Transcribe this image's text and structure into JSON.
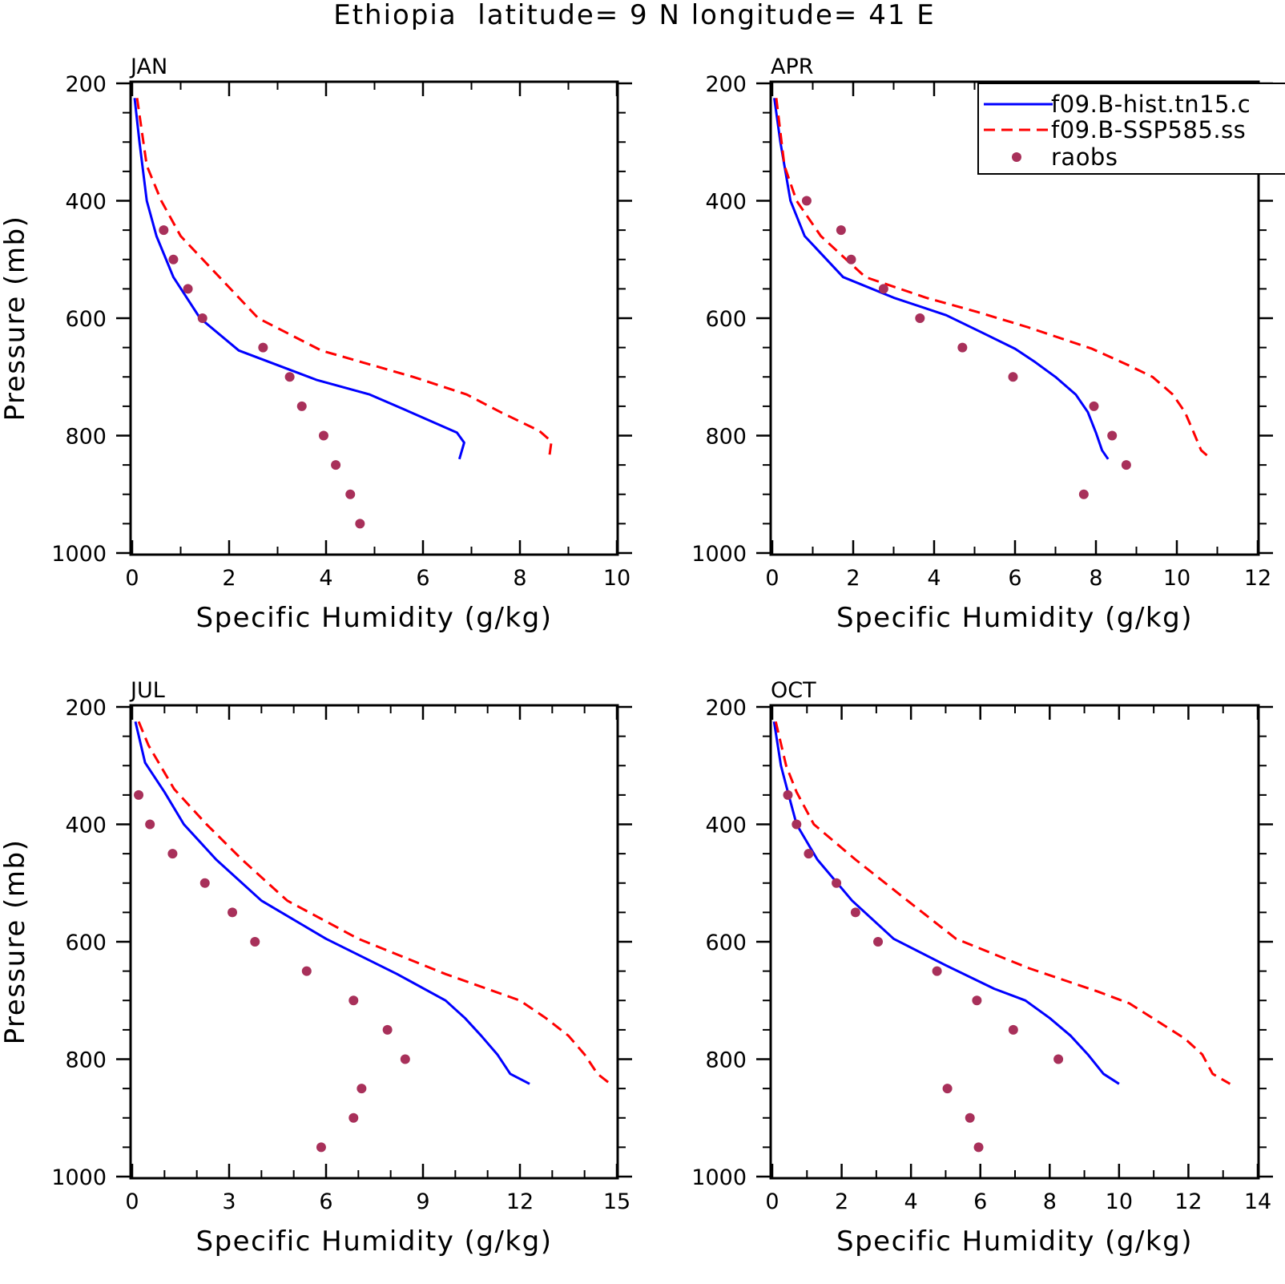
{
  "figure_title": "Ethiopia  latitude= 9 N longitude= 41 E",
  "colors": {
    "hist": "#0000ff",
    "ssp": "#ff0000",
    "raobs": "#a8305a",
    "axis": "#000000"
  },
  "legend": {
    "entries": [
      {
        "label": "f09.B-hist.tn15.c",
        "style": "solid-line",
        "color": "#0000ff"
      },
      {
        "label": "f09.B-SSP585.ss",
        "style": "dashed-line",
        "color": "#ff0000"
      },
      {
        "label": "raobs",
        "style": "marker",
        "color": "#a8305a"
      }
    ],
    "placement": "top-right of APR panel"
  },
  "chart_data": [
    {
      "type": "line",
      "panel": "JAN",
      "xlabel": "Specific Humidity (g/kg)",
      "ylabel": "Pressure (mb)",
      "xlim": [
        0,
        10
      ],
      "ylim": [
        1000,
        200
      ],
      "y_inverted": true,
      "xticks": [
        0,
        2,
        4,
        6,
        8,
        10
      ],
      "yticks": [
        200,
        400,
        600,
        800,
        1000
      ],
      "grid": false,
      "series": [
        {
          "name": "f09.B-hist.tn15.c",
          "style": "solid",
          "points": [
            [
              0.05,
              225
            ],
            [
              0.15,
              300
            ],
            [
              0.3,
              400
            ],
            [
              0.5,
              460
            ],
            [
              0.85,
              530
            ],
            [
              1.4,
              600
            ],
            [
              2.2,
              655
            ],
            [
              3.8,
              705
            ],
            [
              4.9,
              730
            ],
            [
              5.6,
              755
            ],
            [
              6.7,
              795
            ],
            [
              6.85,
              812
            ],
            [
              6.75,
              840
            ]
          ]
        },
        {
          "name": "f09.B-SSP585.ss",
          "style": "dashed",
          "points": [
            [
              0.1,
              225
            ],
            [
              0.3,
              340
            ],
            [
              0.6,
              400
            ],
            [
              1.0,
              460
            ],
            [
              1.8,
              530
            ],
            [
              2.6,
              600
            ],
            [
              3.9,
              655
            ],
            [
              5.8,
              700
            ],
            [
              6.9,
              730
            ],
            [
              7.6,
              760
            ],
            [
              8.4,
              792
            ],
            [
              8.65,
              810
            ],
            [
              8.6,
              840
            ]
          ]
        },
        {
          "name": "raobs",
          "style": "marker",
          "points": [
            [
              0.65,
              450
            ],
            [
              0.85,
              500
            ],
            [
              1.15,
              550
            ],
            [
              1.45,
              600
            ],
            [
              2.7,
              650
            ],
            [
              3.25,
              700
            ],
            [
              3.5,
              750
            ],
            [
              3.95,
              800
            ],
            [
              4.2,
              850
            ],
            [
              4.5,
              900
            ],
            [
              4.7,
              950
            ]
          ]
        }
      ]
    },
    {
      "type": "line",
      "panel": "APR",
      "xlabel": "Specific Humidity (g/kg)",
      "ylabel": "",
      "xlim": [
        0,
        12
      ],
      "ylim": [
        1000,
        200
      ],
      "y_inverted": true,
      "xticks": [
        0,
        2,
        4,
        6,
        8,
        10,
        12
      ],
      "yticks": [
        200,
        400,
        600,
        800,
        1000
      ],
      "grid": false,
      "series": [
        {
          "name": "f09.B-hist.tn15.c",
          "style": "solid",
          "points": [
            [
              0.05,
              225
            ],
            [
              0.2,
              300
            ],
            [
              0.45,
              400
            ],
            [
              0.8,
              460
            ],
            [
              1.75,
              530
            ],
            [
              3.0,
              565
            ],
            [
              4.3,
              595
            ],
            [
              5.2,
              625
            ],
            [
              6.0,
              652
            ],
            [
              6.5,
              675
            ],
            [
              7.0,
              700
            ],
            [
              7.5,
              730
            ],
            [
              7.8,
              760
            ],
            [
              8.0,
              795
            ],
            [
              8.15,
              825
            ],
            [
              8.3,
              840
            ]
          ]
        },
        {
          "name": "f09.B-SSP585.ss",
          "style": "dashed",
          "points": [
            [
              0.1,
              225
            ],
            [
              0.3,
              340
            ],
            [
              0.6,
              400
            ],
            [
              1.2,
              460
            ],
            [
              2.3,
              530
            ],
            [
              3.8,
              565
            ],
            [
              5.1,
              590
            ],
            [
              6.3,
              615
            ],
            [
              7.9,
              652
            ],
            [
              8.8,
              680
            ],
            [
              9.4,
              700
            ],
            [
              9.9,
              730
            ],
            [
              10.2,
              760
            ],
            [
              10.4,
              792
            ],
            [
              10.6,
              825
            ],
            [
              10.85,
              840
            ]
          ]
        },
        {
          "name": "raobs",
          "style": "marker",
          "points": [
            [
              0.85,
              400
            ],
            [
              1.7,
              450
            ],
            [
              1.95,
              500
            ],
            [
              2.75,
              550
            ],
            [
              3.65,
              600
            ],
            [
              4.7,
              650
            ],
            [
              5.95,
              700
            ],
            [
              7.95,
              750
            ],
            [
              8.4,
              800
            ],
            [
              8.75,
              850
            ],
            [
              7.7,
              900
            ]
          ]
        }
      ]
    },
    {
      "type": "line",
      "panel": "JUL",
      "xlabel": "Specific Humidity (g/kg)",
      "ylabel": "Pressure (mb)",
      "xlim": [
        0,
        15
      ],
      "ylim": [
        1000,
        200
      ],
      "y_inverted": true,
      "xticks": [
        0,
        3,
        6,
        9,
        12,
        15
      ],
      "yticks": [
        200,
        400,
        600,
        800,
        1000
      ],
      "grid": false,
      "series": [
        {
          "name": "f09.B-hist.tn15.c",
          "style": "solid",
          "points": [
            [
              0.1,
              225
            ],
            [
              0.4,
              295
            ],
            [
              1.0,
              345
            ],
            [
              1.6,
              400
            ],
            [
              2.6,
              460
            ],
            [
              4.0,
              530
            ],
            [
              6.0,
              595
            ],
            [
              8.2,
              655
            ],
            [
              9.7,
              700
            ],
            [
              10.3,
              730
            ],
            [
              10.8,
              760
            ],
            [
              11.3,
              792
            ],
            [
              11.7,
              825
            ],
            [
              12.3,
              842
            ]
          ]
        },
        {
          "name": "f09.B-SSP585.ss",
          "style": "dashed",
          "points": [
            [
              0.2,
              225
            ],
            [
              0.5,
              265
            ],
            [
              1.3,
              340
            ],
            [
              2.3,
              400
            ],
            [
              3.4,
              460
            ],
            [
              4.8,
              530
            ],
            [
              7.0,
              595
            ],
            [
              9.7,
              655
            ],
            [
              12.0,
              700
            ],
            [
              12.8,
              730
            ],
            [
              13.5,
              760
            ],
            [
              14.0,
              792
            ],
            [
              14.4,
              825
            ],
            [
              14.8,
              842
            ]
          ]
        },
        {
          "name": "raobs",
          "style": "marker",
          "points": [
            [
              0.2,
              350
            ],
            [
              0.55,
              400
            ],
            [
              1.25,
              450
            ],
            [
              2.25,
              500
            ],
            [
              3.1,
              550
            ],
            [
              3.8,
              600
            ],
            [
              5.4,
              650
            ],
            [
              6.85,
              700
            ],
            [
              7.9,
              750
            ],
            [
              8.45,
              800
            ],
            [
              7.1,
              850
            ],
            [
              6.85,
              900
            ],
            [
              5.85,
              950
            ]
          ]
        }
      ]
    },
    {
      "type": "line",
      "panel": "OCT",
      "xlabel": "Specific Humidity (g/kg)",
      "ylabel": "",
      "xlim": [
        0,
        14
      ],
      "ylim": [
        1000,
        200
      ],
      "y_inverted": true,
      "xticks": [
        0,
        2,
        4,
        6,
        8,
        10,
        12,
        14
      ],
      "yticks": [
        200,
        400,
        600,
        800,
        1000
      ],
      "grid": false,
      "series": [
        {
          "name": "f09.B-hist.tn15.c",
          "style": "solid",
          "points": [
            [
              0.05,
              225
            ],
            [
              0.25,
              300
            ],
            [
              0.45,
              345
            ],
            [
              0.7,
              400
            ],
            [
              1.3,
              460
            ],
            [
              2.3,
              530
            ],
            [
              3.5,
              595
            ],
            [
              5.0,
              640
            ],
            [
              6.4,
              680
            ],
            [
              7.3,
              700
            ],
            [
              8.0,
              730
            ],
            [
              8.6,
              760
            ],
            [
              9.1,
              792
            ],
            [
              9.55,
              825
            ],
            [
              10.0,
              842
            ]
          ]
        },
        {
          "name": "f09.B-SSP585.ss",
          "style": "dashed",
          "points": [
            [
              0.1,
              225
            ],
            [
              0.4,
              300
            ],
            [
              0.7,
              345
            ],
            [
              1.2,
              400
            ],
            [
              2.4,
              460
            ],
            [
              3.9,
              530
            ],
            [
              5.3,
              595
            ],
            [
              7.4,
              645
            ],
            [
              9.4,
              685
            ],
            [
              10.3,
              705
            ],
            [
              11.1,
              735
            ],
            [
              11.9,
              765
            ],
            [
              12.4,
              792
            ],
            [
              12.7,
              825
            ],
            [
              13.2,
              842
            ]
          ]
        },
        {
          "name": "raobs",
          "style": "marker",
          "points": [
            [
              0.45,
              350
            ],
            [
              0.7,
              400
            ],
            [
              1.05,
              450
            ],
            [
              1.85,
              500
            ],
            [
              2.4,
              550
            ],
            [
              3.05,
              600
            ],
            [
              4.75,
              650
            ],
            [
              5.9,
              700
            ],
            [
              6.95,
              750
            ],
            [
              8.25,
              800
            ],
            [
              5.05,
              850
            ],
            [
              5.7,
              900
            ],
            [
              5.95,
              950
            ]
          ]
        }
      ]
    }
  ]
}
